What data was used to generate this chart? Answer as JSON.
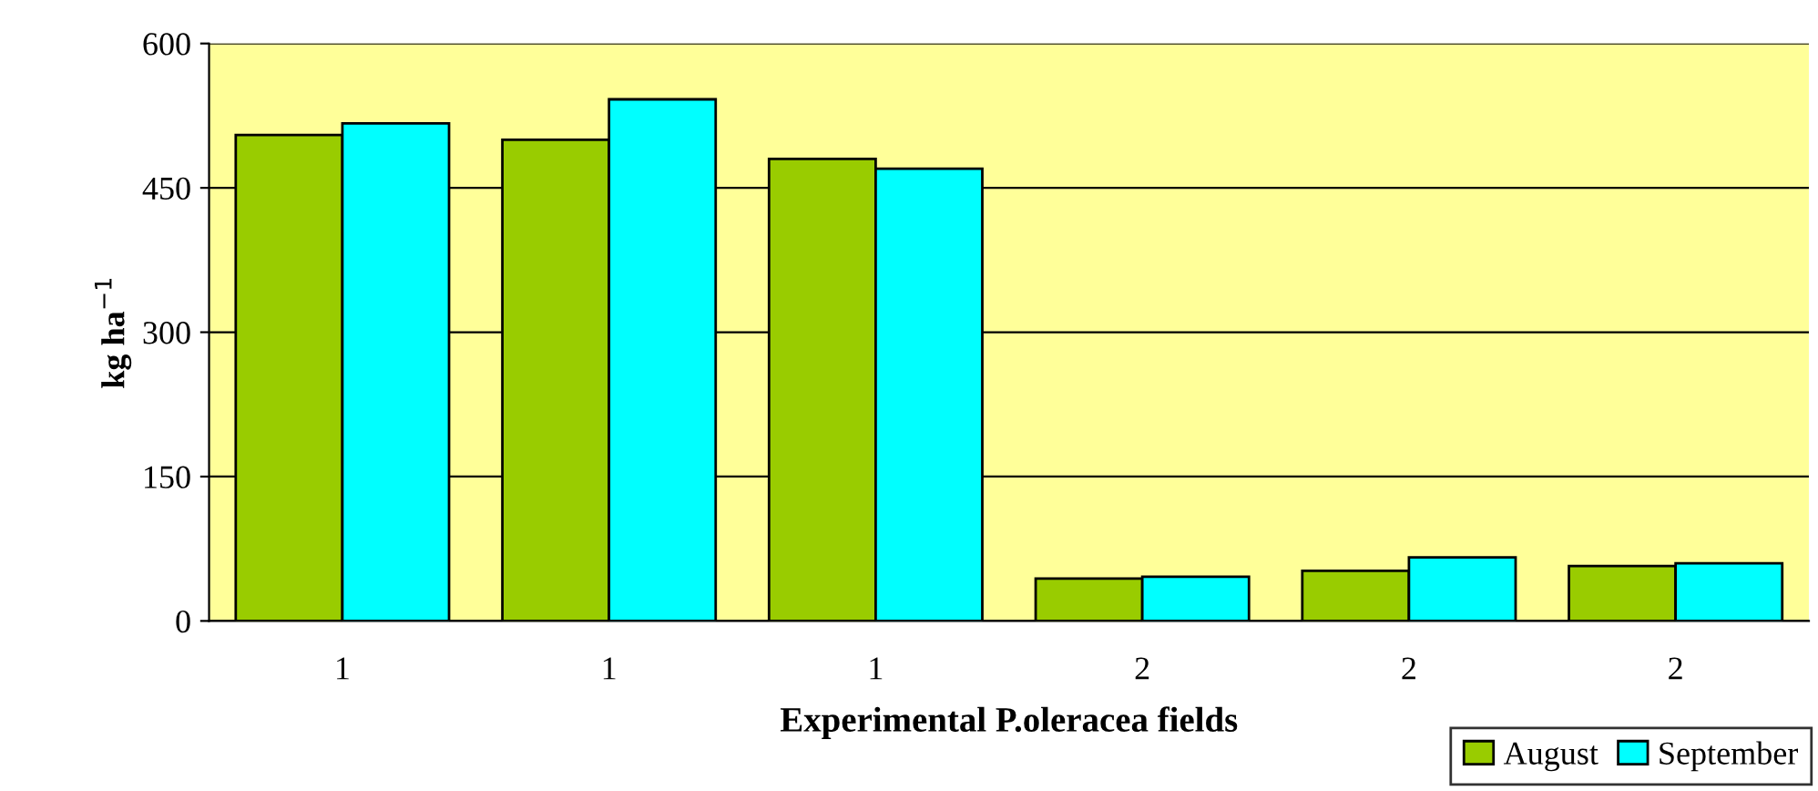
{
  "chart_data": {
    "type": "bar",
    "xlabel": "Experimental P.oleracea fields",
    "ylabel": "kg ha$^{−1}$",
    "categories": [
      "1",
      "1",
      "1",
      "2",
      "2",
      "2"
    ],
    "series": [
      {
        "name": "August",
        "color": "#99cc00",
        "values": [
          505,
          500,
          480,
          44,
          52,
          57
        ]
      },
      {
        "name": "September",
        "color": "#00ffff",
        "values": [
          517,
          542,
          470,
          46,
          66,
          60
        ]
      }
    ],
    "ylim": [
      0,
      600
    ],
    "yticks": [
      0,
      150,
      300,
      450,
      600
    ],
    "grid": "y",
    "legend": "bottom right"
  }
}
